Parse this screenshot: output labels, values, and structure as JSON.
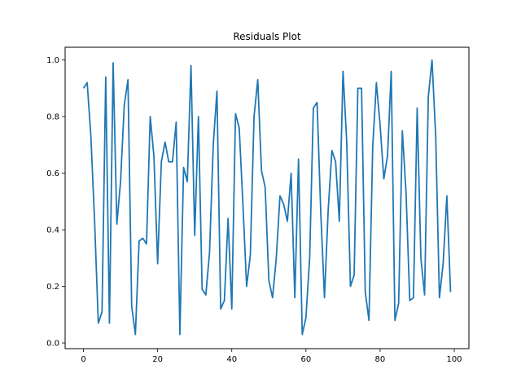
{
  "chart_data": {
    "type": "line",
    "title": "Residuals Plot",
    "xlabel": "",
    "ylabel": "",
    "xlim": [
      -4.95,
      103.95
    ],
    "ylim": [
      -0.02,
      1.045
    ],
    "xticks": [
      0,
      20,
      40,
      60,
      80,
      100
    ],
    "xtick_labels": [
      "0",
      "20",
      "40",
      "60",
      "80",
      "100"
    ],
    "yticks": [
      0.0,
      0.2,
      0.4,
      0.6,
      0.8,
      1.0
    ],
    "ytick_labels": [
      "0.0",
      "0.2",
      "0.4",
      "0.6",
      "0.8",
      "1.0"
    ],
    "grid": false,
    "line_color": "#1f77b4",
    "series": [
      {
        "x": [
          0,
          1,
          2,
          3,
          4,
          5,
          6,
          7,
          8,
          9,
          10,
          11,
          12,
          13,
          14,
          15,
          16,
          17,
          18,
          19,
          20,
          21,
          22,
          23,
          24,
          25,
          26,
          27,
          28,
          29,
          30,
          31,
          32,
          33,
          34,
          35,
          36,
          37,
          38,
          39,
          40,
          41,
          42,
          43,
          44,
          45,
          46,
          47,
          48,
          49,
          50,
          51,
          52,
          53,
          54,
          55,
          56,
          57,
          58,
          59,
          60,
          61,
          62,
          63,
          64,
          65,
          66,
          67,
          68,
          69,
          70,
          71,
          72,
          73,
          74,
          75,
          76,
          77,
          78,
          79,
          80,
          81,
          82,
          83,
          84,
          85,
          86,
          87,
          88,
          89,
          90,
          91,
          92,
          93,
          94,
          95,
          96,
          97,
          98,
          99
        ],
        "y": [
          0.9,
          0.92,
          0.73,
          0.43,
          0.07,
          0.11,
          0.94,
          0.07,
          0.99,
          0.42,
          0.57,
          0.84,
          0.93,
          0.13,
          0.03,
          0.36,
          0.37,
          0.35,
          0.8,
          0.66,
          0.28,
          0.64,
          0.71,
          0.64,
          0.64,
          0.78,
          0.03,
          0.62,
          0.57,
          0.98,
          0.38,
          0.8,
          0.19,
          0.17,
          0.32,
          0.7,
          0.89,
          0.12,
          0.15,
          0.44,
          0.12,
          0.81,
          0.76,
          0.49,
          0.2,
          0.31,
          0.8,
          0.93,
          0.61,
          0.55,
          0.22,
          0.16,
          0.3,
          0.52,
          0.49,
          0.43,
          0.6,
          0.16,
          0.65,
          0.03,
          0.09,
          0.3,
          0.83,
          0.85,
          0.46,
          0.16,
          0.47,
          0.68,
          0.64,
          0.43,
          0.96,
          0.71,
          0.2,
          0.24,
          0.9,
          0.9,
          0.18,
          0.08,
          0.69,
          0.92,
          0.77,
          0.58,
          0.66,
          0.96,
          0.08,
          0.14,
          0.75,
          0.53,
          0.15,
          0.16,
          0.83,
          0.3,
          0.17,
          0.87,
          1.0,
          0.73,
          0.16,
          0.28,
          0.52,
          0.18
        ]
      }
    ]
  }
}
